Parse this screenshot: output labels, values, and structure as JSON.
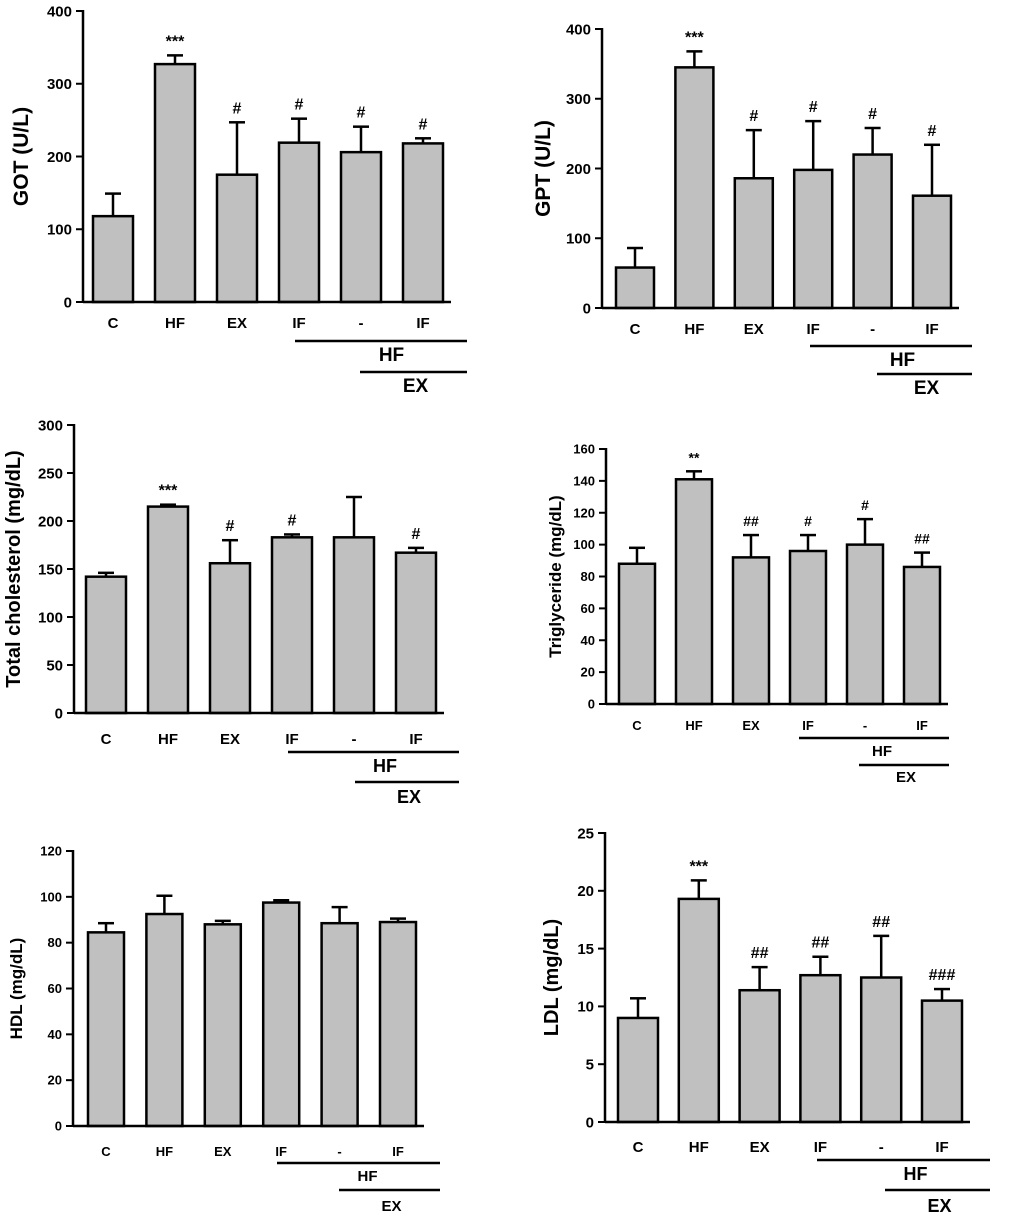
{
  "colors": {
    "bar_fill": "#c0c0c0",
    "stroke": "#000000",
    "background": "#ffffff"
  },
  "chart_data": [
    {
      "type": "bar",
      "ylabel": "GOT (U/L)",
      "ylim": [
        0,
        400
      ],
      "yticks": [
        0,
        100,
        200,
        300,
        400
      ],
      "categories": [
        "C",
        "HF",
        "EX",
        "IF",
        "-",
        "IF"
      ],
      "values": [
        118,
        327,
        175,
        219,
        206,
        218
      ],
      "errors": [
        31,
        12,
        72,
        33,
        35,
        7
      ],
      "annotations": [
        "",
        "***",
        "#",
        "#",
        "#",
        "#"
      ],
      "group_labels": {
        "hf": "HF",
        "ex": "EX"
      }
    },
    {
      "type": "bar",
      "ylabel": "GPT (U/L)",
      "ylim": [
        0,
        400
      ],
      "yticks": [
        0,
        100,
        200,
        300,
        400
      ],
      "categories": [
        "C",
        "HF",
        "EX",
        "IF",
        "-",
        "IF"
      ],
      "values": [
        58,
        345,
        186,
        198,
        220,
        161
      ],
      "errors": [
        28,
        23,
        69,
        70,
        38,
        73
      ],
      "annotations": [
        "",
        "***",
        "#",
        "#",
        "#",
        "#"
      ],
      "group_labels": {
        "hf": "HF",
        "ex": "EX"
      }
    },
    {
      "type": "bar",
      "ylabel": "Total cholesterol (mg/dL)",
      "ylim": [
        0,
        300
      ],
      "yticks": [
        0,
        50,
        100,
        150,
        200,
        250,
        300
      ],
      "categories": [
        "C",
        "HF",
        "EX",
        "IF",
        "-",
        "IF"
      ],
      "values": [
        142,
        215,
        156,
        183,
        183,
        167
      ],
      "errors": [
        4,
        2,
        24,
        3,
        42,
        5
      ],
      "annotations": [
        "",
        "***",
        "#",
        "#",
        "",
        "#"
      ],
      "group_labels": {
        "hf": "HF",
        "ex": "EX"
      }
    },
    {
      "type": "bar",
      "ylabel": "Triglyceride (mg/dL)",
      "ylim": [
        0,
        160
      ],
      "yticks": [
        0,
        20,
        40,
        60,
        80,
        100,
        120,
        140,
        160
      ],
      "categories": [
        "C",
        "HF",
        "EX",
        "IF",
        "-",
        "IF"
      ],
      "values": [
        88,
        141,
        92,
        96,
        100,
        86
      ],
      "errors": [
        10,
        5,
        14,
        10,
        16,
        9
      ],
      "annotations": [
        "",
        "**",
        "##",
        "#",
        "#",
        "##"
      ],
      "group_labels": {
        "hf": "HF",
        "ex": "EX"
      }
    },
    {
      "type": "bar",
      "ylabel": "HDL (mg/dL)",
      "ylim": [
        0,
        120
      ],
      "yticks": [
        0,
        20,
        40,
        60,
        80,
        100,
        120
      ],
      "categories": [
        "C",
        "HF",
        "EX",
        "IF",
        "-",
        "IF"
      ],
      "values": [
        84.5,
        92.5,
        88,
        97.5,
        88.5,
        89
      ],
      "errors": [
        4,
        8,
        1.5,
        1,
        7,
        1.5
      ],
      "annotations": [
        "",
        "",
        "",
        "",
        "",
        ""
      ],
      "group_labels": {
        "hf": "HF",
        "ex": "EX"
      }
    },
    {
      "type": "bar",
      "ylabel": "LDL (mg/dL)",
      "ylim": [
        0,
        25
      ],
      "yticks": [
        0,
        5,
        10,
        15,
        20,
        25
      ],
      "categories": [
        "C",
        "HF",
        "EX",
        "IF",
        "-",
        "IF"
      ],
      "values": [
        9,
        19.3,
        11.4,
        12.7,
        12.5,
        10.5
      ],
      "errors": [
        1.7,
        1.6,
        2,
        1.6,
        3.6,
        1
      ],
      "annotations": [
        "",
        "***",
        "##",
        "##",
        "##",
        "###"
      ],
      "group_labels": {
        "hf": "HF",
        "ex": "EX"
      }
    }
  ]
}
